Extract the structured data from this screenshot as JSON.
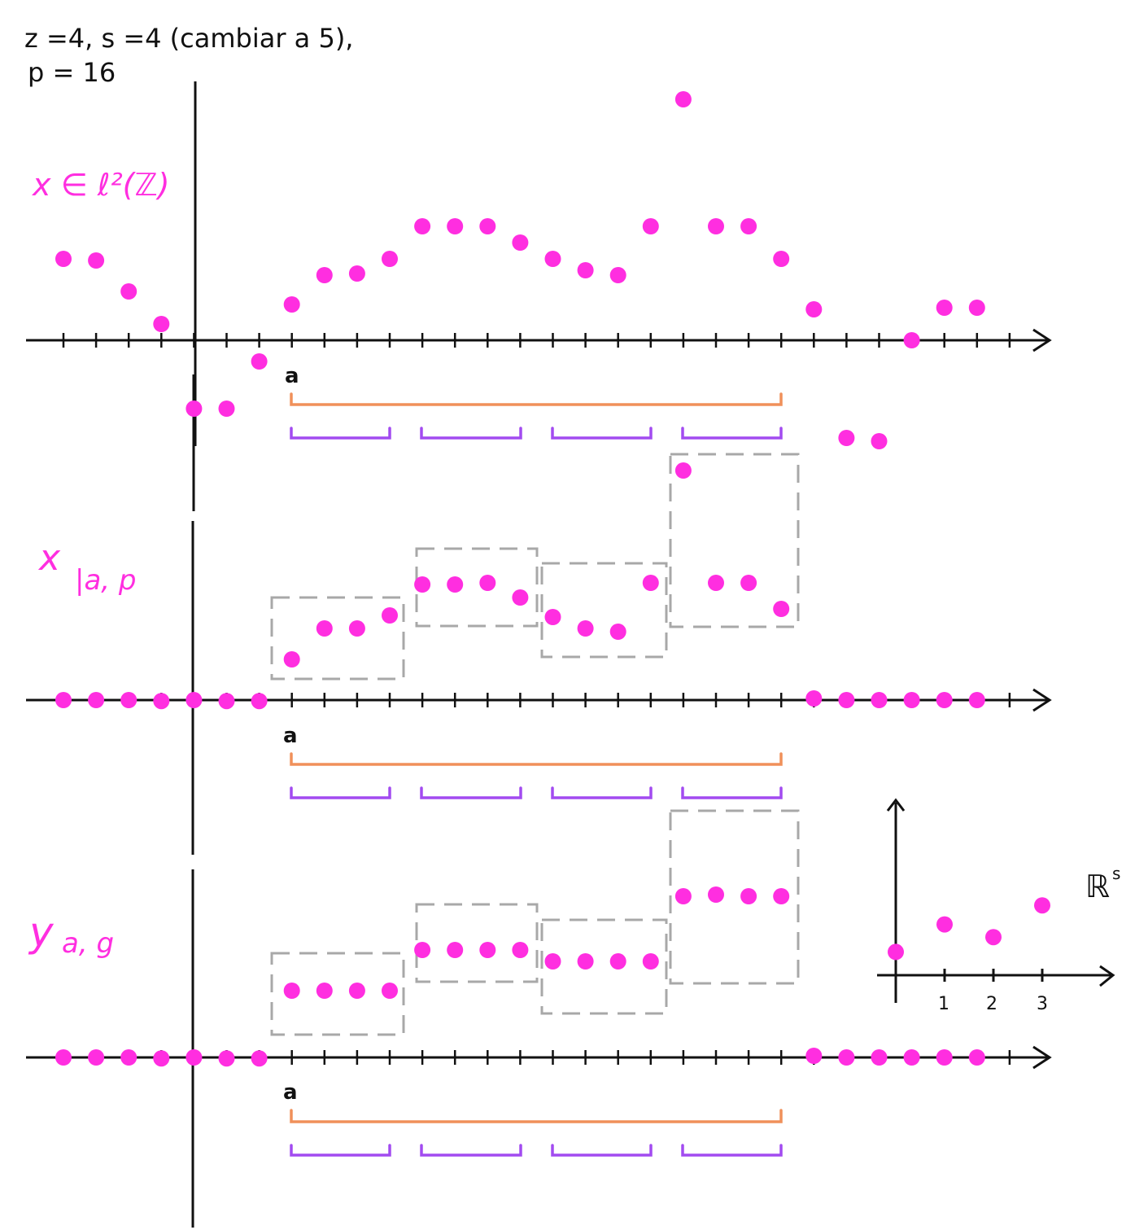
{
  "header": {
    "line1": "z =4,  s =4  (cambiar a  5),",
    "line2": "p = 16"
  },
  "labels": {
    "x_signal": "x ∈ ℓ²(ℤ)",
    "x_restricted_main": "x",
    "x_restricted_sub": "|a, p",
    "y_main": "y",
    "y_sub": "a, g",
    "a_marker": "a",
    "rs_main": "ℝ",
    "rs_sup": "s"
  },
  "inset": {
    "ticks": [
      "1",
      "2",
      "3"
    ],
    "values": [
      1.1,
      2.4,
      1.8,
      3.3
    ]
  },
  "panels": [
    {
      "name": "x",
      "values": [
        2.5,
        2.45,
        1.5,
        0.5,
        -2.1,
        -2.1,
        -0.65,
        1.1,
        2.0,
        2.05,
        2.5,
        3.5,
        3.5,
        3.5,
        3.0,
        2.5,
        2.15,
        2.0,
        3.5,
        7.4,
        3.5,
        3.5,
        2.5,
        0.95,
        -3.0,
        -3.1,
        0.0,
        1.0,
        1.0
      ]
    },
    {
      "name": "x_restricted",
      "values": [
        0,
        0,
        0,
        -0.03,
        0,
        -0.03,
        -0.03,
        1.25,
        2.2,
        2.2,
        2.6,
        3.55,
        3.55,
        3.6,
        3.15,
        2.55,
        2.2,
        2.1,
        3.6,
        7.05,
        3.6,
        3.6,
        2.8,
        0.05,
        0,
        0,
        0,
        0,
        0
      ]
    },
    {
      "name": "y",
      "values": [
        0,
        0,
        0,
        -0.03,
        0,
        -0.03,
        -0.03,
        2.05,
        2.05,
        2.05,
        2.05,
        3.3,
        3.3,
        3.3,
        3.3,
        2.95,
        2.95,
        2.95,
        2.95,
        4.95,
        5.0,
        4.95,
        4.95,
        0.05,
        0,
        0,
        0,
        0,
        0
      ]
    }
  ],
  "colors": {
    "dots": "#ff2ee0",
    "axis": "#111111",
    "bracket_big": "#f0905a",
    "bracket_small": "#a24bf0",
    "box": "#a8a8a8"
  }
}
